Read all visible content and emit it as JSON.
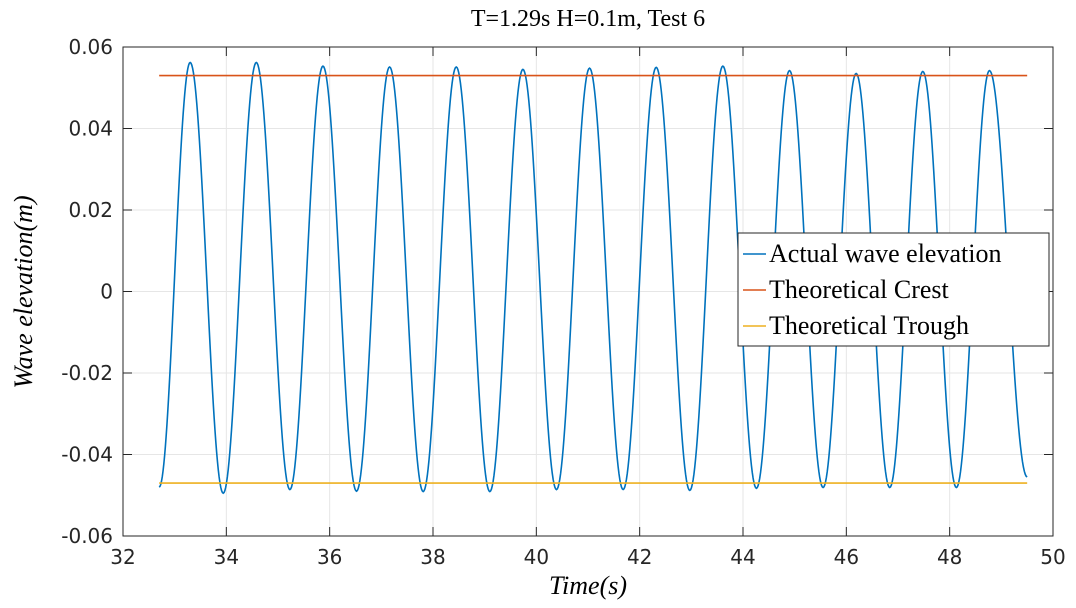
{
  "chart_data": {
    "type": "line",
    "title": "T=1.29s H=0.1m, Test 6",
    "xlabel": "Time(s)",
    "ylabel": "Wave elevation(m)",
    "xlim": [
      32,
      50
    ],
    "ylim": [
      -0.06,
      0.06
    ],
    "xticks": [
      "32",
      "34",
      "36",
      "38",
      "40",
      "42",
      "44",
      "46",
      "48",
      "50"
    ],
    "yticks": [
      "0.06",
      "0.04",
      "0.02",
      "0",
      "-0.02",
      "-0.04",
      "-0.06"
    ],
    "grid": true,
    "legend_position": "right",
    "series": [
      {
        "name": "Actual wave elevation",
        "color": "#0072BD",
        "x_range": [
          32.7,
          49.5
        ],
        "period": 1.29,
        "crest_times": [
          33.3,
          34.58,
          35.87,
          37.16,
          38.45,
          39.74,
          41.03,
          42.32,
          43.61,
          44.9,
          46.19,
          47.48,
          48.77
        ],
        "crest_values": [
          0.0562,
          0.0562,
          0.0553,
          0.0551,
          0.0551,
          0.0545,
          0.0548,
          0.055,
          0.0553,
          0.0542,
          0.0535,
          0.054,
          0.0542
        ],
        "trough_times": [
          33.94,
          35.23,
          36.52,
          37.81,
          39.1,
          40.39,
          41.68,
          42.97,
          44.26,
          45.55,
          46.84,
          48.13
        ],
        "trough_values": [
          -0.0495,
          -0.0486,
          -0.049,
          -0.0491,
          -0.0491,
          -0.0486,
          -0.0486,
          -0.0488,
          -0.0483,
          -0.0481,
          -0.0481,
          -0.0481
        ],
        "start_value": -0.048,
        "end_value": -0.0455
      },
      {
        "name": "Theoretical Crest",
        "color": "#D95319",
        "x": [
          32.7,
          49.5
        ],
        "y": [
          0.053,
          0.053
        ]
      },
      {
        "name": "Theoretical Trough",
        "color": "#EDB120",
        "x": [
          32.7,
          49.5
        ],
        "y": [
          -0.047,
          -0.047
        ]
      }
    ]
  }
}
